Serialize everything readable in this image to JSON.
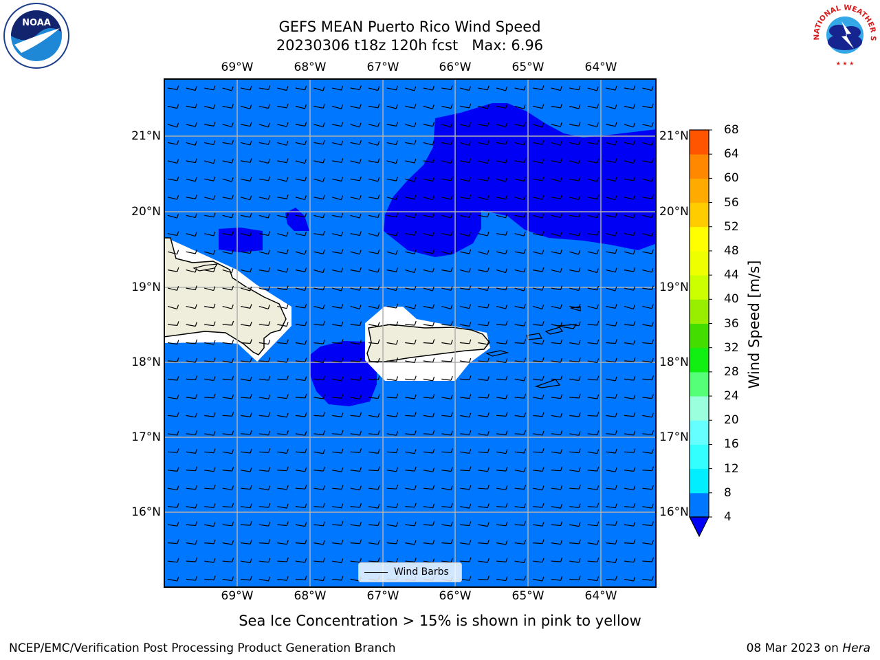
{
  "header": {
    "title_line1": "GEFS MEAN Puerto Rico Wind Speed",
    "title_line2": "20230306 t18z 120h fcst   Max: 6.96"
  },
  "map": {
    "lon_ticks": [
      "69°W",
      "68°W",
      "67°W",
      "66°W",
      "65°W",
      "64°W"
    ],
    "lat_ticks": [
      "21°N",
      "20°N",
      "19°N",
      "18°N",
      "17°N",
      "16°N"
    ],
    "legend_label": "Wind Barbs",
    "colors": {
      "ocean": "#0077ff",
      "stronger_wind": "#0000f5",
      "land": "#efeedc",
      "gridline": "#b0b0b0"
    }
  },
  "colorbar": {
    "label": "Wind Speed [m/s]",
    "ticks": [
      "4",
      "8",
      "12",
      "16",
      "20",
      "24",
      "28",
      "32",
      "36",
      "40",
      "44",
      "48",
      "52",
      "56",
      "60",
      "64",
      "68"
    ],
    "colors": [
      "#0077ff",
      "#00eeff",
      "#33ffff",
      "#66ffff",
      "#99ffdd",
      "#55ff77",
      "#11ee11",
      "#44dd00",
      "#99ee00",
      "#ccff00",
      "#eeff00",
      "#ffff00",
      "#ffcc00",
      "#ffaa00",
      "#ff8800",
      "#ff5500",
      "#ee1100"
    ],
    "under_color": "#0000f5"
  },
  "caption": "Sea Ice Concentration > 15% is shown in pink to yellow",
  "footer": {
    "left": "NCEP/EMC/Verification Post Processing Product Generation Branch",
    "right_prefix": "08 Mar 2023 on",
    "right_italic": "Hera"
  },
  "logos": {
    "noaa_text": "NOAA",
    "nws_text": "NATIONAL WEATHER SERVICE"
  }
}
